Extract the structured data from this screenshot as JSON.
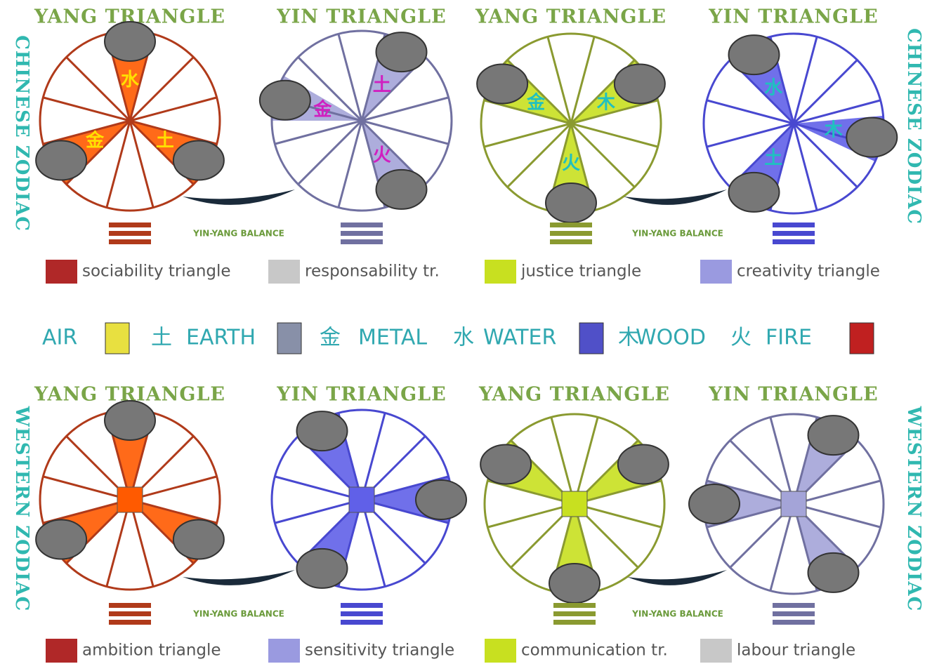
{
  "top_row": {
    "side_label": "CHINESE ZODIAC",
    "balance_label": "YIN-YANG BALANCE",
    "wheels": [
      {
        "title": "YANG TRIANGLE",
        "glyphs": [
          "水",
          "金",
          "土"
        ]
      },
      {
        "title": "YIN TRIANGLE",
        "glyphs": [
          "金",
          "土",
          "火"
        ]
      },
      {
        "title": "YANG TRIANGLE",
        "glyphs": [
          "金",
          "木",
          "火"
        ]
      },
      {
        "title": "YIN TRIANGLE",
        "glyphs": [
          "水",
          "木",
          "土"
        ]
      }
    ],
    "legend": [
      "sociability triangle",
      "responsability tr.",
      "justice triangle",
      "creativity triangle"
    ]
  },
  "elements": [
    {
      "label": "AIR"
    },
    {
      "glyph": "土",
      "label": "EARTH"
    },
    {
      "glyph": "金",
      "label": "METAL"
    },
    {
      "glyph": "水",
      "label": "WATER"
    },
    {
      "glyph": "木",
      "label": "WOOD"
    },
    {
      "glyph": "火",
      "label": "FIRE"
    }
  ],
  "bottom_row": {
    "side_label": "WESTERN ZODIAC",
    "balance_label": "YIN-YANG BALANCE",
    "wheels": [
      {
        "title": "YANG TRIANGLE"
      },
      {
        "title": "YIN TRIANGLE"
      },
      {
        "title": "YANG TRIANGLE"
      },
      {
        "title": "YIN TRIANGLE"
      }
    ],
    "legend": [
      "ambition triangle",
      "sensitivity triangle",
      "communication tr.",
      "labour triangle"
    ]
  }
}
